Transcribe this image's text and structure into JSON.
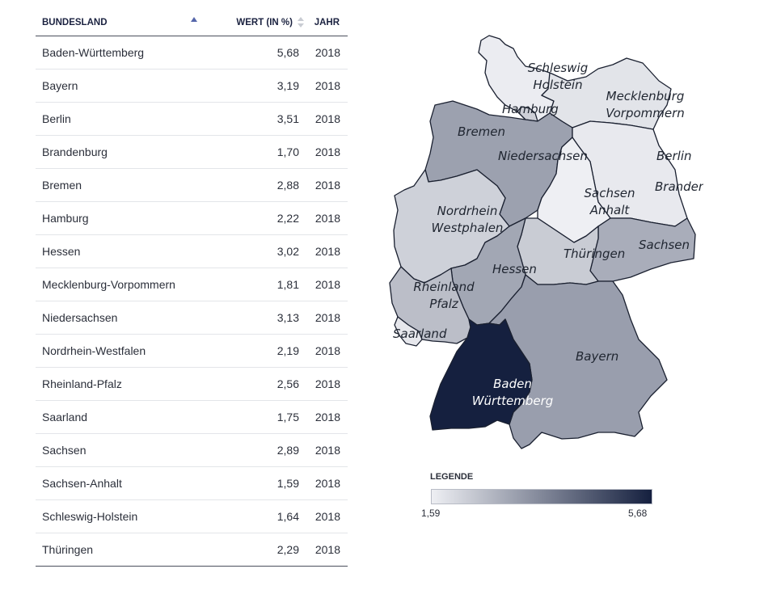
{
  "table": {
    "headers": {
      "state": "BUNDESLAND",
      "value": "WERT (IN %)",
      "year": "JAHR"
    },
    "rows": [
      {
        "state": "Baden-Württemberg",
        "value": "5,68",
        "year": "2018"
      },
      {
        "state": "Bayern",
        "value": "3,19",
        "year": "2018"
      },
      {
        "state": "Berlin",
        "value": "3,51",
        "year": "2018"
      },
      {
        "state": "Brandenburg",
        "value": "1,70",
        "year": "2018"
      },
      {
        "state": "Bremen",
        "value": "2,88",
        "year": "2018"
      },
      {
        "state": "Hamburg",
        "value": "2,22",
        "year": "2018"
      },
      {
        "state": "Hessen",
        "value": "3,02",
        "year": "2018"
      },
      {
        "state": "Mecklenburg-Vorpommern",
        "value": "1,81",
        "year": "2018"
      },
      {
        "state": "Niedersachsen",
        "value": "3,13",
        "year": "2018"
      },
      {
        "state": "Nordrhein-Westfalen",
        "value": "2,19",
        "year": "2018"
      },
      {
        "state": "Rheinland-Pfalz",
        "value": "2,56",
        "year": "2018"
      },
      {
        "state": "Saarland",
        "value": "1,75",
        "year": "2018"
      },
      {
        "state": "Sachsen",
        "value": "2,89",
        "year": "2018"
      },
      {
        "state": "Sachsen-Anhalt",
        "value": "1,59",
        "year": "2018"
      },
      {
        "state": "Schleswig-Holstein",
        "value": "1,64",
        "year": "2018"
      },
      {
        "state": "Thüringen",
        "value": "2,29",
        "year": "2018"
      }
    ]
  },
  "map": {
    "labels": {
      "sh": [
        "Schleswig",
        "Holstein"
      ],
      "hh": [
        "Hamburg"
      ],
      "mv": [
        "Mecklenburg",
        "Vorpommern"
      ],
      "hb": [
        "Bremen"
      ],
      "ni": [
        "Niedersachsen"
      ],
      "be": [
        "Berlin"
      ],
      "st": [
        "Sachsen",
        "Anhalt"
      ],
      "bb": [
        "Brandenburg"
      ],
      "nw": [
        "Nordrhein",
        "Westphalen"
      ],
      "sn": [
        "Sachsen"
      ],
      "th": [
        "Thüringen"
      ],
      "he": [
        "Hessen"
      ],
      "rp": [
        "Rheinland",
        "Pfalz"
      ],
      "sl": [
        "Saarland"
      ],
      "by": [
        "Bayern"
      ],
      "bw": [
        "Baden",
        "Württemberg"
      ]
    }
  },
  "legend": {
    "title": "LEGENDE",
    "min_label": "1,59",
    "max_label": "5,68"
  },
  "colors": {
    "low": "#eeeff3",
    "high": "#15203f"
  },
  "chart_data": {
    "type": "choropleth",
    "year": "2018",
    "unit": "%",
    "regions": [
      {
        "id": "bw",
        "name": "Baden-Württemberg",
        "value": 5.68
      },
      {
        "id": "by",
        "name": "Bayern",
        "value": 3.19
      },
      {
        "id": "be",
        "name": "Berlin",
        "value": 3.51
      },
      {
        "id": "bb",
        "name": "Brandenburg",
        "value": 1.7
      },
      {
        "id": "hb",
        "name": "Bremen",
        "value": 2.88
      },
      {
        "id": "hh",
        "name": "Hamburg",
        "value": 2.22
      },
      {
        "id": "he",
        "name": "Hessen",
        "value": 3.02
      },
      {
        "id": "mv",
        "name": "Mecklenburg-Vorpommern",
        "value": 1.81
      },
      {
        "id": "ni",
        "name": "Niedersachsen",
        "value": 3.13
      },
      {
        "id": "nw",
        "name": "Nordrhein-Westfalen",
        "value": 2.19
      },
      {
        "id": "rp",
        "name": "Rheinland-Pfalz",
        "value": 2.56
      },
      {
        "id": "sl",
        "name": "Saarland",
        "value": 1.75
      },
      {
        "id": "sn",
        "name": "Sachsen",
        "value": 2.89
      },
      {
        "id": "st",
        "name": "Sachsen-Anhalt",
        "value": 1.59
      },
      {
        "id": "sh",
        "name": "Schleswig-Holstein",
        "value": 1.64
      },
      {
        "id": "th",
        "name": "Thüringen",
        "value": 2.29
      }
    ],
    "scale": {
      "min": 1.59,
      "max": 5.68
    }
  }
}
